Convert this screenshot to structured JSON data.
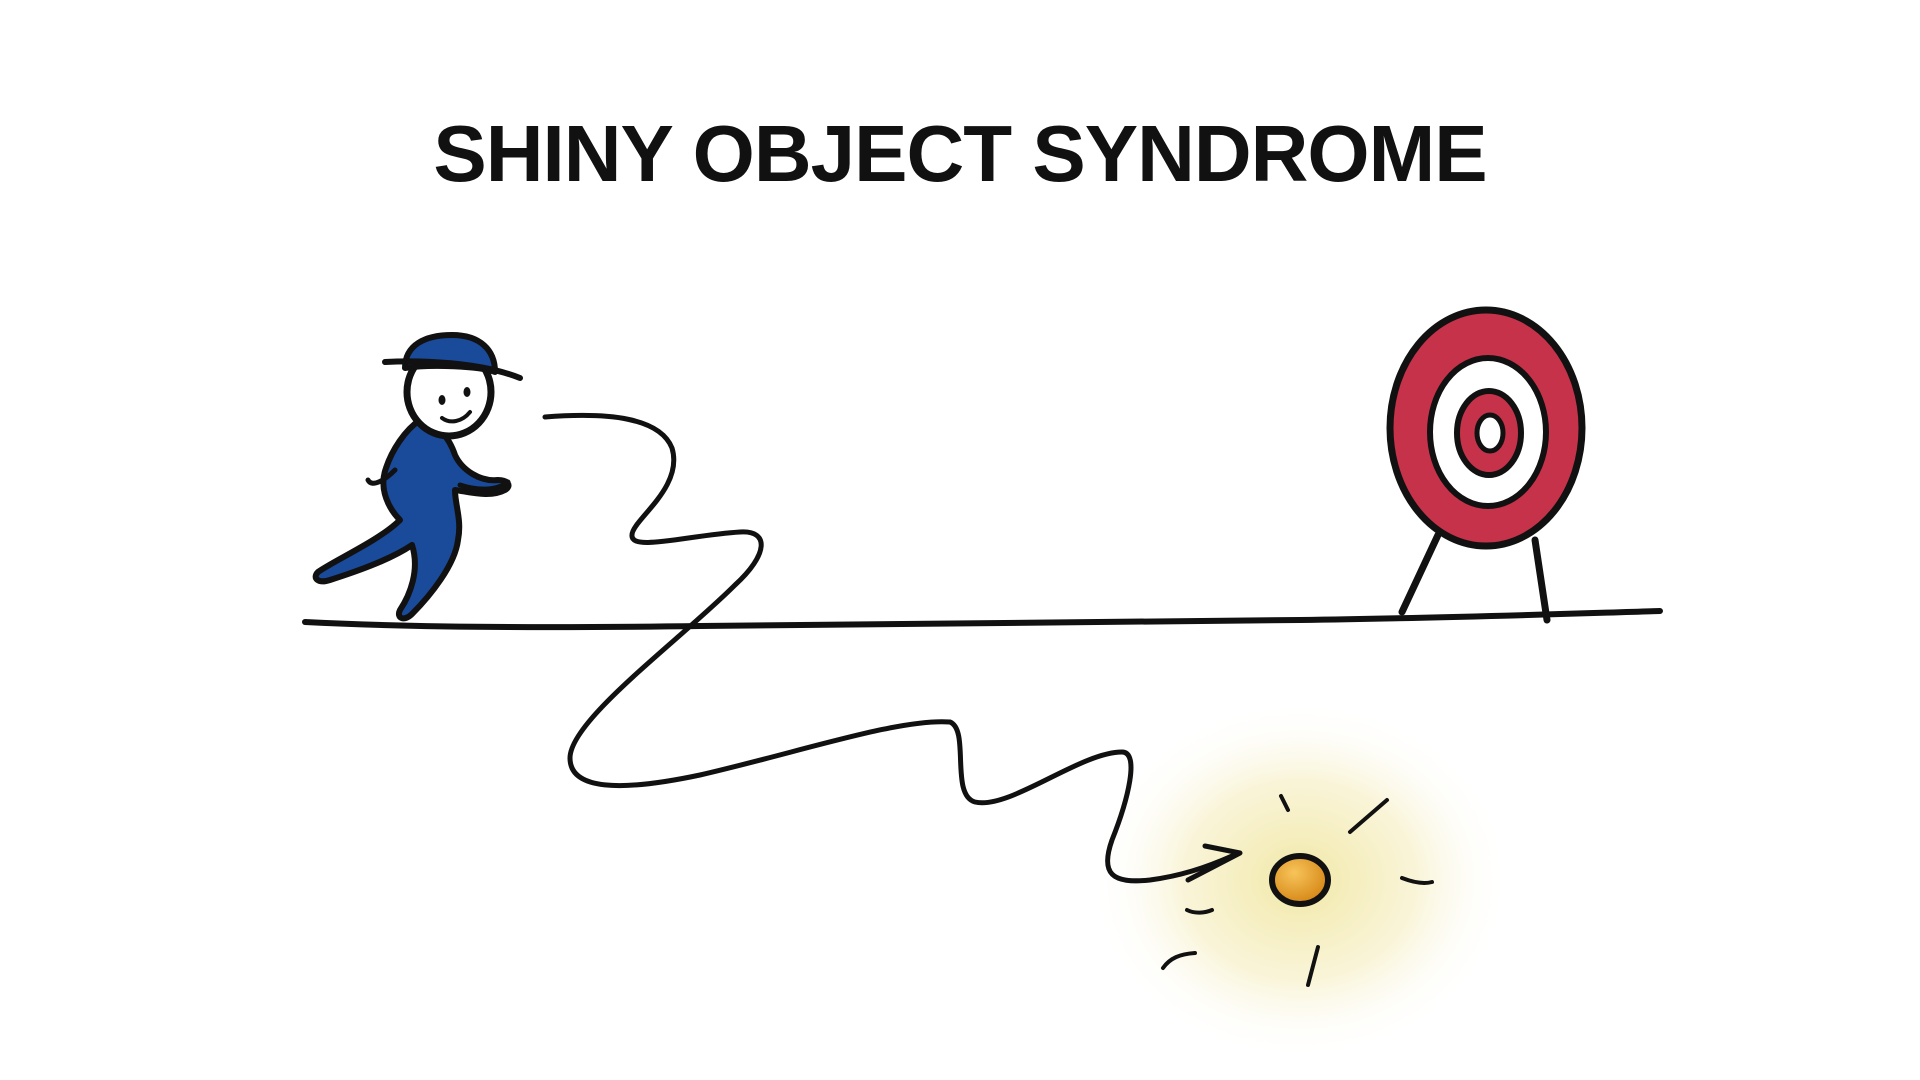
{
  "title": "SHINY OBJECT SYNDROME",
  "colors": {
    "ink": "#111111",
    "person_fill": "#1a4a9a",
    "target_red": "#c5324a",
    "target_white": "#ffffff",
    "coin": "#e6a12a",
    "glow": "#f3e9a8"
  },
  "figures": {
    "person": "person-with-hat-icon",
    "target": "archery-target-icon",
    "shiny_object": "shiny-coin-icon",
    "path": "wandering-path-arrow"
  }
}
